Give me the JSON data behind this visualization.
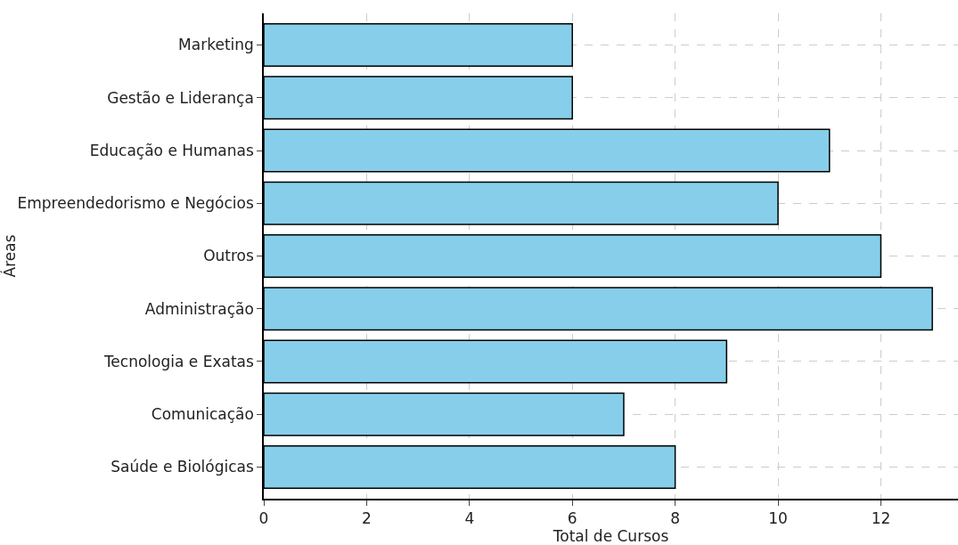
{
  "chart_data": {
    "type": "bar",
    "orientation": "horizontal",
    "xlabel": "Total de Cursos",
    "ylabel": "Áreas",
    "categories": [
      "Marketing",
      "Gestão e Liderança",
      "Educação e Humanas",
      "Empreendedorismo e Negócios",
      "Outros",
      "Administração",
      "Tecnologia e Exatas",
      "Comunicação",
      "Saúde e Biológicas"
    ],
    "values": [
      6,
      6,
      11,
      10,
      12,
      13,
      9,
      7,
      8
    ],
    "color": "#87ceeb",
    "xlim": [
      0,
      13.5
    ],
    "xticks": [
      0,
      2,
      4,
      6,
      8,
      10,
      12
    ],
    "grid": true
  }
}
